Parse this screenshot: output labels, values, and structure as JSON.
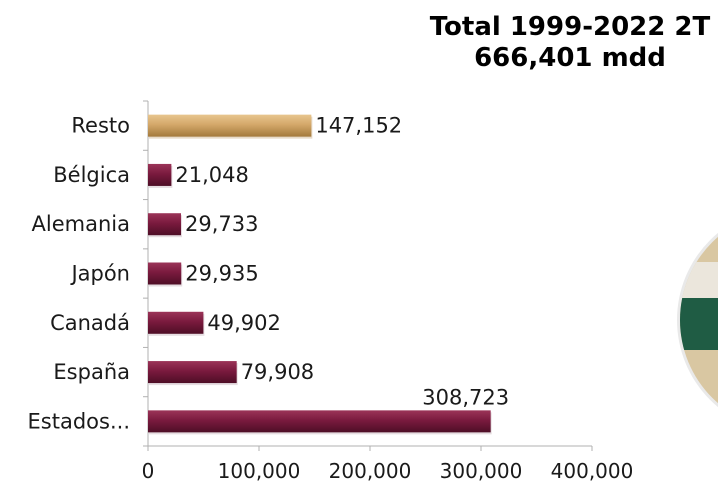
{
  "chart_data": {
    "type": "bar",
    "orientation": "horizontal",
    "title": "Total 1999-2022 2T",
    "subtitle": "666,401 mdd",
    "categories": [
      "Resto",
      "Bélgica",
      "Alemania",
      "Japón",
      "Canadá",
      "España",
      "Estados..."
    ],
    "values": [
      147152,
      21048,
      29733,
      29935,
      49902,
      79908,
      308723
    ],
    "value_labels": [
      "147,152",
      "21,048",
      "29,733",
      "29,935",
      "49,902",
      "79,908",
      "308,723"
    ],
    "x_ticks": [
      0,
      100000,
      200000,
      300000,
      400000
    ],
    "x_tick_labels": [
      "0",
      "100,000",
      "200,000",
      "300,000",
      "400,000"
    ],
    "xlim": [
      0,
      400000
    ],
    "grid": false,
    "colors": {
      "highlight_bar": "#d4a86a",
      "highlight_bar_dark": "#a37a3c",
      "bar": "#7a1a3e",
      "bar_dark": "#4e0e26",
      "axis": "#b0b0b0",
      "pie_green": "#1f5c44",
      "pie_tan": "#d9c7a2",
      "pie_light": "#ebe6dc"
    }
  }
}
